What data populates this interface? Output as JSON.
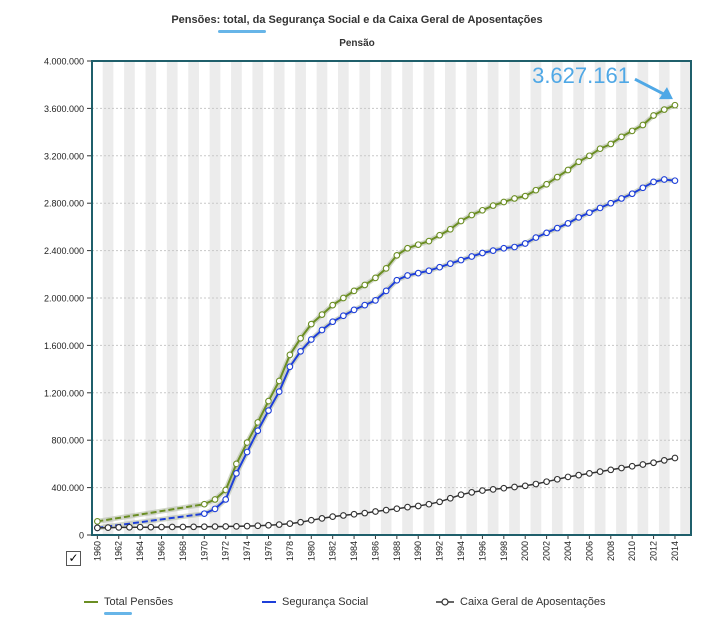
{
  "title": "Pensões: total, da Segurança Social e da Caixa Geral de Aposentações",
  "subtitle": "Pensão",
  "annotation": {
    "label": "3.627.161",
    "color": "#4fa8e6",
    "x": 2014,
    "y": 3627161
  },
  "colors": {
    "total": "#6b8e23",
    "seguranca": "#1e3fd9",
    "caixa": "#333333",
    "frame": "#1f5f6b",
    "band": "#ececec"
  },
  "legend": [
    {
      "label": "Total Pensões",
      "series": "total"
    },
    {
      "label": "Segurança Social",
      "series": "seguranca"
    },
    {
      "label": "Caixa Geral de Aposentações",
      "series": "caixa"
    }
  ],
  "checkbox": "✓",
  "chart_data": {
    "type": "line",
    "x": [
      1960,
      1961,
      1962,
      1963,
      1964,
      1965,
      1966,
      1967,
      1968,
      1969,
      1970,
      1971,
      1972,
      1973,
      1974,
      1975,
      1976,
      1977,
      1978,
      1979,
      1980,
      1981,
      1982,
      1983,
      1984,
      1985,
      1986,
      1987,
      1988,
      1989,
      1990,
      1991,
      1992,
      1993,
      1994,
      1995,
      1996,
      1997,
      1998,
      1999,
      2000,
      2001,
      2002,
      2003,
      2004,
      2005,
      2006,
      2007,
      2008,
      2009,
      2010,
      2011,
      2012,
      2013,
      2014
    ],
    "ylim": [
      0,
      4000000
    ],
    "yticks": [
      "0",
      "400.000",
      "800.000",
      "1.200.000",
      "1.600.000",
      "2.000.000",
      "2.400.000",
      "2.800.000",
      "3.200.000",
      "3.600.000",
      "4.000.000"
    ],
    "xticks": [
      "1960",
      "1962",
      "1964",
      "1966",
      "1968",
      "1970",
      "1972",
      "1974",
      "1976",
      "1978",
      "1980",
      "1982",
      "1984",
      "1986",
      "1988",
      "1990",
      "1992",
      "1994",
      "1996",
      "1998",
      "2000",
      "2002",
      "2004",
      "2006",
      "2008",
      "2010",
      "2012",
      "2014"
    ],
    "grid": true,
    "legend_position": "bottom",
    "series": [
      {
        "name": "Total Pensões",
        "key": "total",
        "dashed_until": 1970,
        "points": [
          [
            1960,
            115000
          ],
          [
            1970,
            260000
          ],
          [
            1971,
            300000
          ],
          [
            1972,
            380000
          ],
          [
            1973,
            600000
          ],
          [
            1974,
            780000
          ],
          [
            1975,
            950000
          ],
          [
            1976,
            1130000
          ],
          [
            1977,
            1300000
          ],
          [
            1978,
            1520000
          ],
          [
            1979,
            1660000
          ],
          [
            1980,
            1780000
          ],
          [
            1981,
            1860000
          ],
          [
            1982,
            1940000
          ],
          [
            1983,
            2000000
          ],
          [
            1984,
            2060000
          ],
          [
            1985,
            2110000
          ],
          [
            1986,
            2170000
          ],
          [
            1987,
            2250000
          ],
          [
            1988,
            2360000
          ],
          [
            1989,
            2420000
          ],
          [
            1990,
            2450000
          ],
          [
            1991,
            2480000
          ],
          [
            1992,
            2530000
          ],
          [
            1993,
            2580000
          ],
          [
            1994,
            2650000
          ],
          [
            1995,
            2700000
          ],
          [
            1996,
            2740000
          ],
          [
            1997,
            2780000
          ],
          [
            1998,
            2810000
          ],
          [
            1999,
            2840000
          ],
          [
            2000,
            2860000
          ],
          [
            2001,
            2910000
          ],
          [
            2002,
            2960000
          ],
          [
            2003,
            3020000
          ],
          [
            2004,
            3080000
          ],
          [
            2005,
            3150000
          ],
          [
            2006,
            3200000
          ],
          [
            2007,
            3260000
          ],
          [
            2008,
            3300000
          ],
          [
            2009,
            3360000
          ],
          [
            2010,
            3410000
          ],
          [
            2011,
            3460000
          ],
          [
            2012,
            3540000
          ],
          [
            2013,
            3590000
          ],
          [
            2014,
            3627161
          ]
        ]
      },
      {
        "name": "Segurança Social",
        "key": "seguranca",
        "dashed_until": 1970,
        "points": [
          [
            1960,
            60000
          ],
          [
            1970,
            180000
          ],
          [
            1971,
            220000
          ],
          [
            1972,
            300000
          ],
          [
            1973,
            520000
          ],
          [
            1974,
            700000
          ],
          [
            1975,
            880000
          ],
          [
            1976,
            1050000
          ],
          [
            1977,
            1210000
          ],
          [
            1978,
            1420000
          ],
          [
            1979,
            1550000
          ],
          [
            1980,
            1650000
          ],
          [
            1981,
            1730000
          ],
          [
            1982,
            1800000
          ],
          [
            1983,
            1850000
          ],
          [
            1984,
            1900000
          ],
          [
            1985,
            1940000
          ],
          [
            1986,
            1980000
          ],
          [
            1987,
            2060000
          ],
          [
            1988,
            2150000
          ],
          [
            1989,
            2190000
          ],
          [
            1990,
            2210000
          ],
          [
            1991,
            2230000
          ],
          [
            1992,
            2260000
          ],
          [
            1993,
            2290000
          ],
          [
            1994,
            2320000
          ],
          [
            1995,
            2350000
          ],
          [
            1996,
            2380000
          ],
          [
            1997,
            2400000
          ],
          [
            1998,
            2420000
          ],
          [
            1999,
            2430000
          ],
          [
            2000,
            2460000
          ],
          [
            2001,
            2510000
          ],
          [
            2002,
            2550000
          ],
          [
            2003,
            2590000
          ],
          [
            2004,
            2630000
          ],
          [
            2005,
            2680000
          ],
          [
            2006,
            2720000
          ],
          [
            2007,
            2760000
          ],
          [
            2008,
            2800000
          ],
          [
            2009,
            2840000
          ],
          [
            2010,
            2880000
          ],
          [
            2011,
            2930000
          ],
          [
            2012,
            2980000
          ],
          [
            2013,
            3000000
          ],
          [
            2014,
            2990000
          ]
        ]
      },
      {
        "name": "Caixa Geral de Aposentações",
        "key": "caixa",
        "dashed_until": null,
        "points": [
          [
            1960,
            60000
          ],
          [
            1961,
            62000
          ],
          [
            1962,
            64000
          ],
          [
            1963,
            65000
          ],
          [
            1964,
            66000
          ],
          [
            1965,
            66000
          ],
          [
            1966,
            67000
          ],
          [
            1967,
            68000
          ],
          [
            1968,
            68000
          ],
          [
            1969,
            69000
          ],
          [
            1970,
            70000
          ],
          [
            1971,
            71000
          ],
          [
            1972,
            72000
          ],
          [
            1973,
            73000
          ],
          [
            1974,
            75000
          ],
          [
            1975,
            78000
          ],
          [
            1976,
            82000
          ],
          [
            1977,
            88000
          ],
          [
            1978,
            96000
          ],
          [
            1979,
            108000
          ],
          [
            1980,
            125000
          ],
          [
            1981,
            140000
          ],
          [
            1982,
            155000
          ],
          [
            1983,
            165000
          ],
          [
            1984,
            175000
          ],
          [
            1985,
            185000
          ],
          [
            1986,
            198000
          ],
          [
            1987,
            210000
          ],
          [
            1988,
            222000
          ],
          [
            1989,
            235000
          ],
          [
            1990,
            245000
          ],
          [
            1991,
            260000
          ],
          [
            1992,
            280000
          ],
          [
            1993,
            310000
          ],
          [
            1994,
            340000
          ],
          [
            1995,
            360000
          ],
          [
            1996,
            375000
          ],
          [
            1997,
            385000
          ],
          [
            1998,
            395000
          ],
          [
            1999,
            405000
          ],
          [
            2000,
            415000
          ],
          [
            2001,
            430000
          ],
          [
            2002,
            450000
          ],
          [
            2003,
            470000
          ],
          [
            2004,
            490000
          ],
          [
            2005,
            505000
          ],
          [
            2006,
            520000
          ],
          [
            2007,
            535000
          ],
          [
            2008,
            550000
          ],
          [
            2009,
            565000
          ],
          [
            2010,
            580000
          ],
          [
            2011,
            595000
          ],
          [
            2012,
            610000
          ],
          [
            2013,
            630000
          ],
          [
            2014,
            650000
          ]
        ]
      }
    ]
  }
}
